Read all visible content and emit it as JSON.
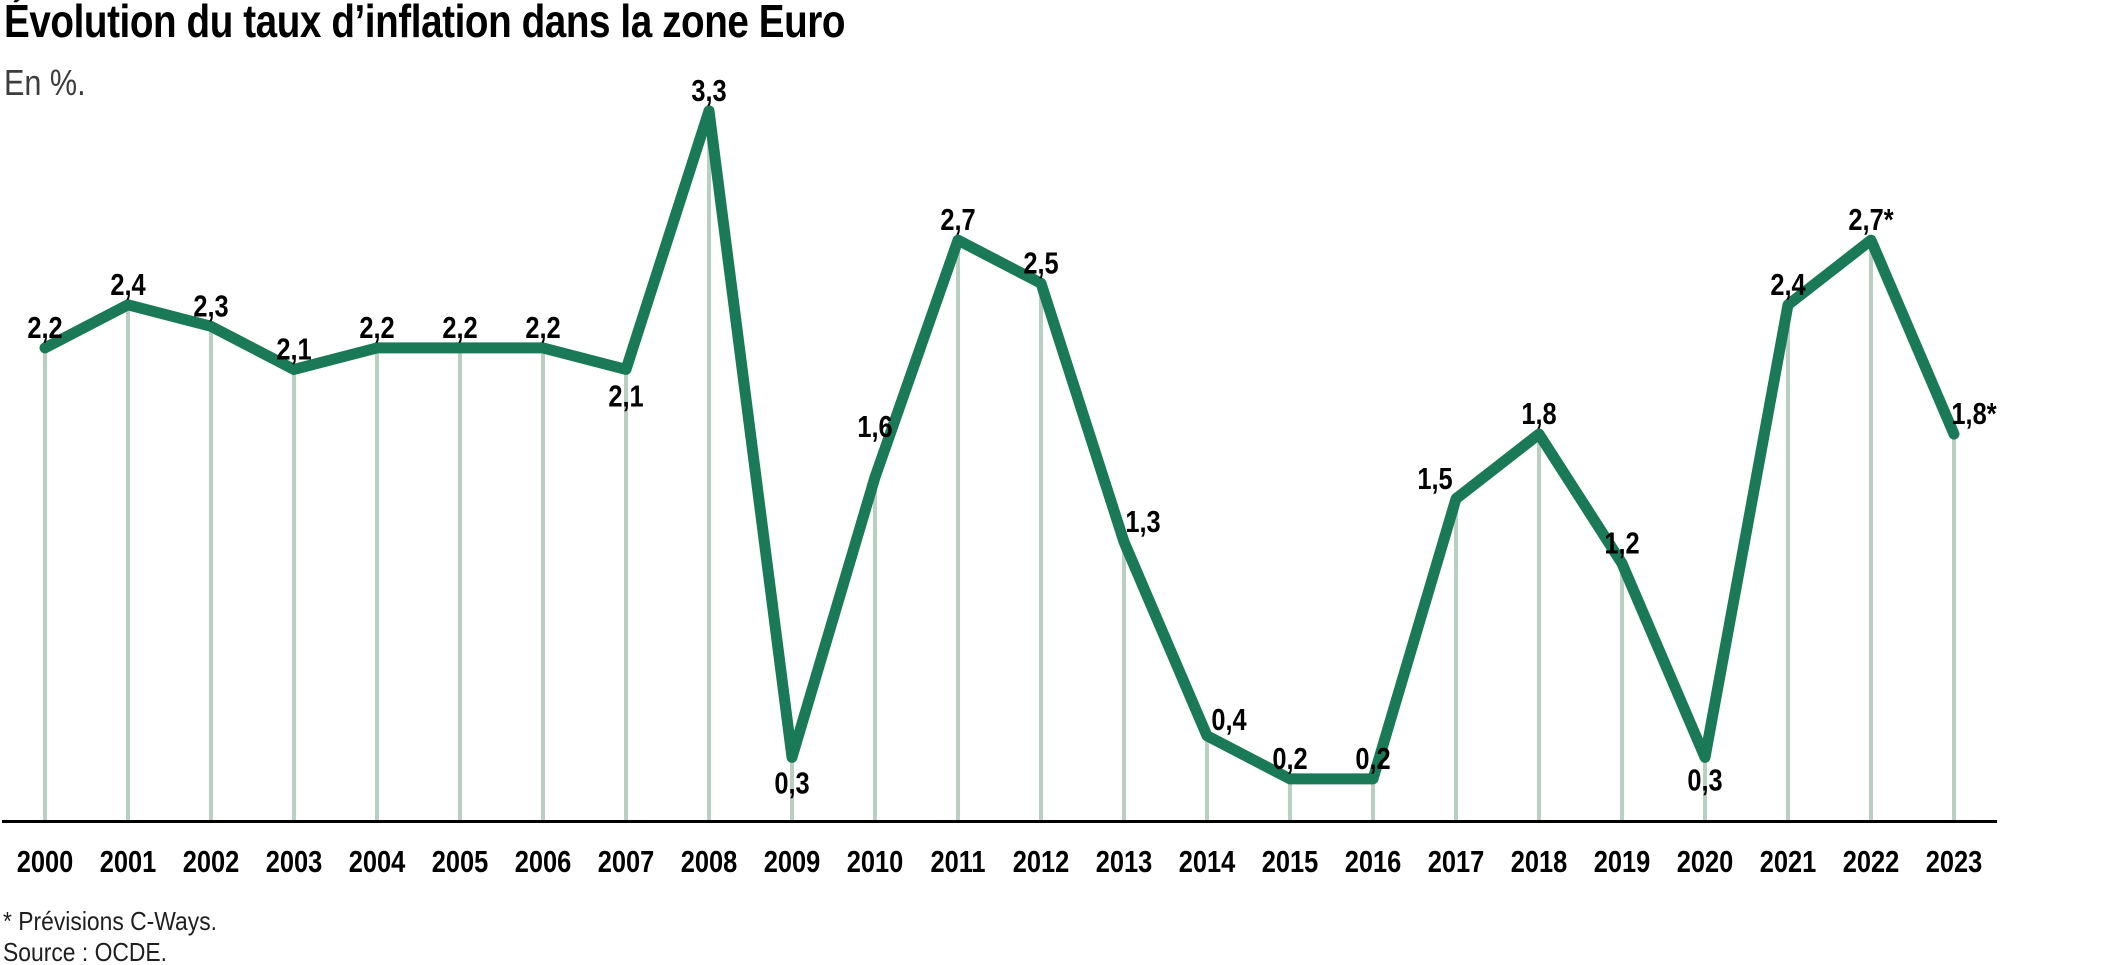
{
  "header": {
    "title": "Évolution du taux d’inflation dans la zone Euro",
    "subtitle": "En %."
  },
  "footer": {
    "footnote": "* Prévisions C-Ways.",
    "source": "Source : OCDE."
  },
  "chart_data": {
    "type": "line",
    "title": "Évolution du taux d’inflation dans la zone Euro",
    "subtitle": "En %.",
    "unit": "%",
    "series_name": "Taux d'inflation zone Euro",
    "categories": [
      "2000",
      "2001",
      "2002",
      "2003",
      "2004",
      "2005",
      "2006",
      "2007",
      "2008",
      "2009",
      "2010",
      "2011",
      "2012",
      "2013",
      "2014",
      "2015",
      "2016",
      "2017",
      "2018",
      "2019",
      "2020",
      "2021",
      "2022",
      "2023"
    ],
    "values": [
      2.2,
      2.4,
      2.3,
      2.1,
      2.2,
      2.2,
      2.2,
      2.1,
      3.3,
      0.3,
      1.6,
      2.7,
      2.5,
      1.3,
      0.4,
      0.2,
      0.2,
      1.5,
      1.8,
      1.2,
      0.3,
      2.4,
      2.7,
      1.8
    ],
    "value_labels": [
      "2,2",
      "2,4",
      "2,3",
      "2,1",
      "2,2",
      "2,2",
      "2,2",
      "2,1",
      "3,3",
      "0,3",
      "1,6",
      "2,7",
      "2,5",
      "1,3",
      "0,4",
      "0,2",
      "0,2",
      "1,5",
      "1,8",
      "1,2",
      "0,3",
      "2,4",
      "2,7*",
      "1,8*"
    ],
    "forecast_years": [
      "2022",
      "2023"
    ],
    "footnote": "* Prévisions C-Ways.",
    "source": "Source : OCDE.",
    "ylim": [
      0,
      3.5
    ],
    "grid": "vertical-drop-lines",
    "legend": "none",
    "colors": {
      "line": "#1a7957",
      "drop_lines": "#b9cfc1",
      "axis": "#000000",
      "labels": "#000000",
      "background": "#ffffff"
    },
    "label_offsets": {
      "2007": {
        "dy": 37
      },
      "2009": {
        "dy": 36
      },
      "2010": {
        "dy": -40
      },
      "2013": {
        "dx": 19
      },
      "2014": {
        "dx": 22,
        "dy": -6
      },
      "2017": {
        "dx": -21
      },
      "2020": {
        "dy": 33
      },
      "2023": {
        "dx": 20
      }
    }
  }
}
